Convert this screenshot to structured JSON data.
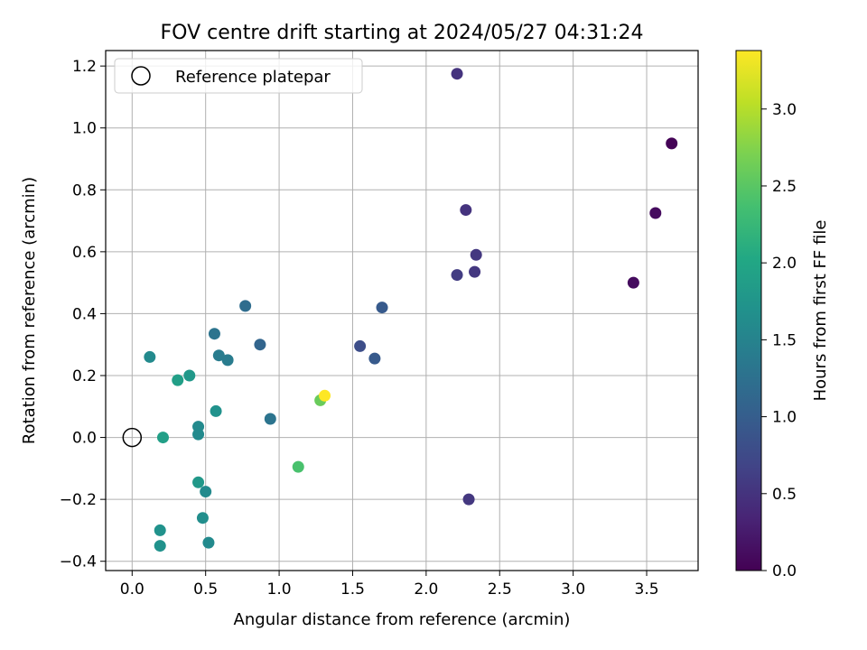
{
  "chart_data": {
    "type": "scatter",
    "title": "FOV centre drift starting at 2024/05/27 04:31:24",
    "xlabel": "Angular distance from reference (arcmin)",
    "ylabel": "Rotation from reference (arcmin)",
    "xlim": [
      -0.18,
      3.85
    ],
    "ylim": [
      -0.43,
      1.25
    ],
    "xticks": [
      0.0,
      0.5,
      1.0,
      1.5,
      2.0,
      2.5,
      3.0,
      3.5
    ],
    "xtick_labels": [
      "0.0",
      "0.5",
      "1.0",
      "1.5",
      "2.0",
      "2.5",
      "3.0",
      "3.5"
    ],
    "yticks": [
      -0.4,
      -0.2,
      0.0,
      0.2,
      0.4,
      0.6,
      0.8,
      1.0,
      1.2
    ],
    "ytick_labels": [
      "−0.4",
      "−0.2",
      "0.0",
      "0.2",
      "0.4",
      "0.6",
      "0.8",
      "1.0",
      "1.2"
    ],
    "grid": true,
    "legend": {
      "placement": "top-left",
      "entries": [
        "Reference platepar"
      ]
    },
    "reference_point": {
      "x": 0.0,
      "y": 0.0,
      "marker": "open-circle",
      "color": "#000000"
    },
    "colorbar": {
      "label": "Hours from first FF file",
      "colormap": "viridis",
      "range": [
        0.0,
        3.38
      ],
      "ticks": [
        0.0,
        0.5,
        1.0,
        1.5,
        2.0,
        2.5,
        3.0
      ],
      "tick_labels": [
        "0.0",
        "0.5",
        "1.0",
        "1.5",
        "2.0",
        "2.5",
        "3.0"
      ]
    },
    "points": [
      {
        "x": 3.67,
        "y": 0.95,
        "hours": 0.02
      },
      {
        "x": 3.56,
        "y": 0.725,
        "hours": 0.1
      },
      {
        "x": 3.41,
        "y": 0.5,
        "hours": 0.1
      },
      {
        "x": 2.21,
        "y": 1.175,
        "hours": 0.5
      },
      {
        "x": 2.27,
        "y": 0.735,
        "hours": 0.5
      },
      {
        "x": 2.34,
        "y": 0.59,
        "hours": 0.55
      },
      {
        "x": 2.33,
        "y": 0.535,
        "hours": 0.55
      },
      {
        "x": 2.21,
        "y": 0.525,
        "hours": 0.6
      },
      {
        "x": 2.29,
        "y": -0.2,
        "hours": 0.55
      },
      {
        "x": 1.7,
        "y": 0.42,
        "hours": 0.95
      },
      {
        "x": 1.55,
        "y": 0.295,
        "hours": 0.8
      },
      {
        "x": 1.65,
        "y": 0.255,
        "hours": 0.95
      },
      {
        "x": 0.77,
        "y": 0.425,
        "hours": 1.2
      },
      {
        "x": 0.87,
        "y": 0.3,
        "hours": 1.1
      },
      {
        "x": 0.56,
        "y": 0.335,
        "hours": 1.3
      },
      {
        "x": 0.59,
        "y": 0.265,
        "hours": 1.4
      },
      {
        "x": 0.65,
        "y": 0.25,
        "hours": 1.4
      },
      {
        "x": 0.94,
        "y": 0.06,
        "hours": 1.3
      },
      {
        "x": 0.12,
        "y": 0.26,
        "hours": 1.6
      },
      {
        "x": 0.39,
        "y": 0.2,
        "hours": 1.8
      },
      {
        "x": 0.31,
        "y": 0.185,
        "hours": 1.9
      },
      {
        "x": 0.57,
        "y": 0.085,
        "hours": 1.7
      },
      {
        "x": 0.45,
        "y": 0.035,
        "hours": 1.6
      },
      {
        "x": 0.45,
        "y": 0.01,
        "hours": 1.6
      },
      {
        "x": 0.21,
        "y": 0.0,
        "hours": 1.9
      },
      {
        "x": 0.45,
        "y": -0.145,
        "hours": 1.8
      },
      {
        "x": 0.5,
        "y": -0.175,
        "hours": 1.6
      },
      {
        "x": 0.48,
        "y": -0.26,
        "hours": 1.65
      },
      {
        "x": 0.19,
        "y": -0.3,
        "hours": 1.7
      },
      {
        "x": 0.19,
        "y": -0.35,
        "hours": 1.7
      },
      {
        "x": 0.52,
        "y": -0.34,
        "hours": 1.6
      },
      {
        "x": 1.28,
        "y": 0.12,
        "hours": 2.6
      },
      {
        "x": 1.13,
        "y": -0.095,
        "hours": 2.4
      },
      {
        "x": 1.31,
        "y": 0.135,
        "hours": 3.38
      }
    ]
  }
}
